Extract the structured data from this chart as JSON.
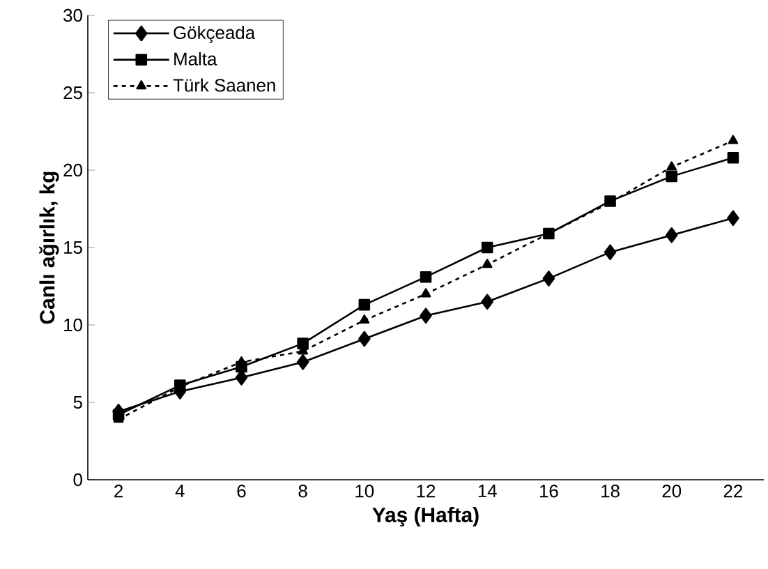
{
  "chart_data": {
    "type": "line",
    "xlabel": "Yaş (Hafta)",
    "ylabel": "Canlı ağırlık, kg",
    "categories": [
      "2",
      "4",
      "6",
      "8",
      "10",
      "12",
      "14",
      "16",
      "18",
      "20",
      "22"
    ],
    "series": [
      {
        "name": "Gökçeada",
        "color": "#000000",
        "marker": "diamond",
        "line_style": "solid",
        "values": [
          4.4,
          5.7,
          6.6,
          7.6,
          9.1,
          10.6,
          11.5,
          13.0,
          14.7,
          15.8,
          16.9
        ]
      },
      {
        "name": "Malta",
        "color": "#000000",
        "marker": "square",
        "line_style": "solid",
        "values": [
          4.2,
          6.1,
          7.3,
          8.8,
          11.3,
          13.1,
          15.0,
          15.9,
          18.0,
          19.6,
          20.8
        ]
      },
      {
        "name": "Türk Saanen",
        "color": "#000000",
        "marker": "triangle",
        "line_style": "dashed",
        "values": [
          3.9,
          6.0,
          7.6,
          8.3,
          10.3,
          12.0,
          13.9,
          15.9,
          17.9,
          20.2,
          21.9
        ]
      }
    ],
    "ylim": [
      0,
      30
    ],
    "yticks": [
      0,
      5,
      10,
      15,
      20,
      25,
      30
    ],
    "grid": false,
    "legend": "top left"
  }
}
